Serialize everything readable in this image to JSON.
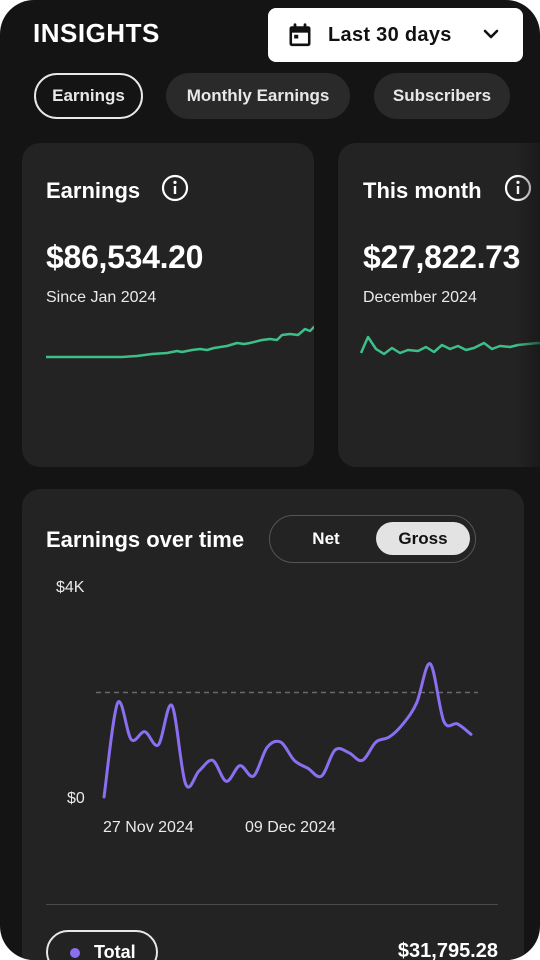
{
  "header": {
    "title": "INSIGHTS",
    "range_label": "Last 30 days"
  },
  "chips": [
    {
      "label": "Earnings",
      "active": true
    },
    {
      "label": "Monthly Earnings",
      "active": false
    },
    {
      "label": "Subscribers",
      "active": false
    }
  ],
  "cards": [
    {
      "title": "Earnings",
      "value": "$86,534.20",
      "subtitle": "Since Jan 2024",
      "spark_color": "#3dbf8a"
    },
    {
      "title": "This month",
      "value": "$27,822.73",
      "subtitle": "December 2024",
      "spark_color": "#3dbf8a"
    }
  ],
  "chart_panel": {
    "title": "Earnings over time",
    "toggle": {
      "net": "Net",
      "gross": "Gross",
      "selected": "Gross"
    },
    "legend_label": "Total",
    "total_value": "$31,795.28",
    "line_color": "#8a6ff0"
  },
  "chart_data": {
    "type": "line",
    "title": "Earnings over time",
    "xlabel": "",
    "ylabel": "",
    "y_tick_labels": [
      "$4K",
      "$0"
    ],
    "x_tick_labels": [
      "27 Nov 2024",
      "09 Dec 2024"
    ],
    "ylim": [
      0,
      4000
    ],
    "reference_line": 2000,
    "grid": false,
    "series": [
      {
        "values": [
          0,
          1800,
          1100,
          1250,
          1000,
          1750,
          250,
          500,
          700,
          300,
          600,
          400,
          950,
          1050,
          700,
          550,
          400,
          900,
          850,
          700,
          1050,
          1150,
          1400,
          1800,
          2550,
          1450,
          1400,
          1200
        ]
      }
    ]
  }
}
